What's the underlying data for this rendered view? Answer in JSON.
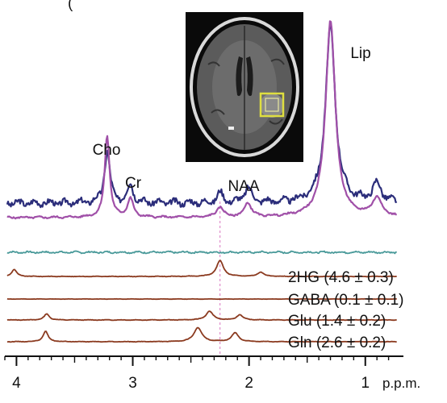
{
  "chart_data": {
    "type": "line",
    "title": "",
    "xlabel": "",
    "ylabel": "",
    "x_unit": "p.p.m.",
    "x_reversed": true,
    "xlim": [
      4.1,
      0.7
    ],
    "x_ticks": [
      4,
      3,
      2,
      1
    ],
    "x_tick_labels": [
      "4",
      "3",
      "2",
      "1"
    ],
    "grid": false,
    "reference_line_ppm": 2.25,
    "top_header_fragment": "(",
    "inset": "axial brain MRI slice with square voxel overlay (yellow) on the left hemisphere lesion",
    "peak_labels": [
      {
        "text": "Cho",
        "ppm": 3.22
      },
      {
        "text": "Cr",
        "ppm": 3.02
      },
      {
        "text": "NAA",
        "ppm": 2.01
      },
      {
        "text": "Lip",
        "ppm": 1.3
      }
    ],
    "series": [
      {
        "key": "observed",
        "color": "#2b2d7a",
        "peaks": [
          [
            3.22,
            0.62,
            0.028
          ],
          [
            3.02,
            0.22,
            0.03
          ],
          [
            2.25,
            0.12,
            0.03
          ],
          [
            2.01,
            0.18,
            0.035
          ],
          [
            1.3,
            2.1,
            0.05
          ],
          [
            0.9,
            0.22,
            0.045
          ]
        ],
        "noise": 0.045,
        "seed": 3
      },
      {
        "key": "fit",
        "color": "#a050a8",
        "peaks": [
          [
            3.22,
            0.98,
            0.025
          ],
          [
            3.02,
            0.22,
            0.03
          ],
          [
            2.25,
            0.12,
            0.035
          ],
          [
            2.01,
            0.17,
            0.035
          ],
          [
            1.3,
            2.35,
            0.05
          ],
          [
            0.9,
            0.22,
            0.05
          ]
        ],
        "noise": 0.012,
        "seed": 5
      },
      {
        "key": "residual",
        "color": "#4a9a9a",
        "peaks": [],
        "noise": 0.02,
        "seed": 7
      },
      {
        "key": "2HG",
        "label": "2HG (4.6 ± 0.3)",
        "color": "#8b3a1f",
        "peaks": [
          [
            4.02,
            0.16,
            0.025
          ],
          [
            2.25,
            0.36,
            0.035
          ],
          [
            1.9,
            0.1,
            0.03
          ]
        ],
        "noise": 0.006,
        "seed": 9
      },
      {
        "key": "GABA",
        "label": "GABA (0.1 ± 0.1)",
        "color": "#8b3a1f",
        "peaks": [],
        "noise": 0.003,
        "seed": 11
      },
      {
        "key": "Glu",
        "label": "Glu (1.4 ± 0.2)",
        "color": "#8b3a1f",
        "peaks": [
          [
            3.74,
            0.14,
            0.025
          ],
          [
            2.34,
            0.2,
            0.035
          ],
          [
            2.08,
            0.12,
            0.03
          ]
        ],
        "noise": 0.006,
        "seed": 13
      },
      {
        "key": "Gln",
        "label": "Gln (2.6 ± 0.2)",
        "color": "#8b3a1f",
        "peaks": [
          [
            3.75,
            0.24,
            0.025
          ],
          [
            2.44,
            0.32,
            0.04
          ],
          [
            2.12,
            0.2,
            0.035
          ]
        ],
        "noise": 0.006,
        "seed": 15
      }
    ]
  }
}
